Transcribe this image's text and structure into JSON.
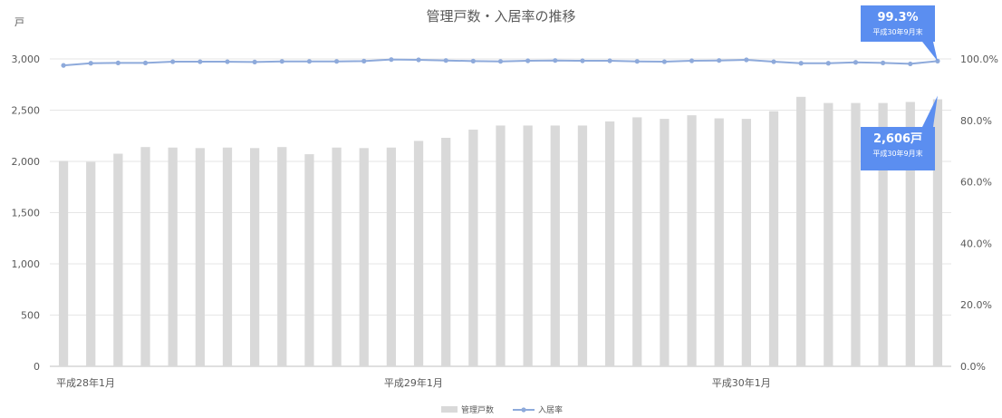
{
  "chart_data": {
    "type": "bar+line",
    "title": "管理戸数・入居率の推移",
    "y_unit_left": "戸",
    "ylim_left": [
      0,
      3000
    ],
    "yticks_left": [
      "0",
      "500",
      "1,000",
      "1,500",
      "2,000",
      "2,500",
      "3,000"
    ],
    "ylim_right": [
      0,
      100
    ],
    "yticks_right": [
      "0.0%",
      "20.0%",
      "40.0%",
      "60.0%",
      "80.0%",
      "100.0%"
    ],
    "x_labels": [
      {
        "index": 0,
        "label": "平成28年1月"
      },
      {
        "index": 12,
        "label": "平成29年1月"
      },
      {
        "index": 24,
        "label": "平成30年1月"
      }
    ],
    "grid": true,
    "legend_position": "bottom",
    "series": [
      {
        "name": "管理戸数",
        "type": "bar",
        "axis": "left",
        "color": "#d9d9d9",
        "values": [
          2005,
          1995,
          2075,
          2140,
          2135,
          2130,
          2135,
          2130,
          2140,
          2070,
          2135,
          2130,
          2135,
          2200,
          2230,
          2310,
          2350,
          2350,
          2350,
          2350,
          2390,
          2430,
          2415,
          2450,
          2420,
          2415,
          2490,
          2630,
          2570,
          2570,
          2570,
          2580,
          2606
        ]
      },
      {
        "name": "入居率",
        "type": "line",
        "axis": "right",
        "color": "#8eaadb",
        "values": [
          97.9,
          98.6,
          98.7,
          98.7,
          99.1,
          99.1,
          99.1,
          99.0,
          99.2,
          99.2,
          99.2,
          99.3,
          99.8,
          99.7,
          99.5,
          99.3,
          99.2,
          99.4,
          99.5,
          99.4,
          99.4,
          99.2,
          99.1,
          99.4,
          99.5,
          99.7,
          99.1,
          98.6,
          98.6,
          98.9,
          98.7,
          98.4,
          99.3
        ]
      }
    ],
    "callouts": [
      {
        "series": "入居率",
        "index": 32,
        "value": "99.3%",
        "sub": "平成30年9月末"
      },
      {
        "series": "管理戸数",
        "index": 32,
        "value": "2,606戸",
        "sub": "平成30年9月末"
      }
    ]
  }
}
